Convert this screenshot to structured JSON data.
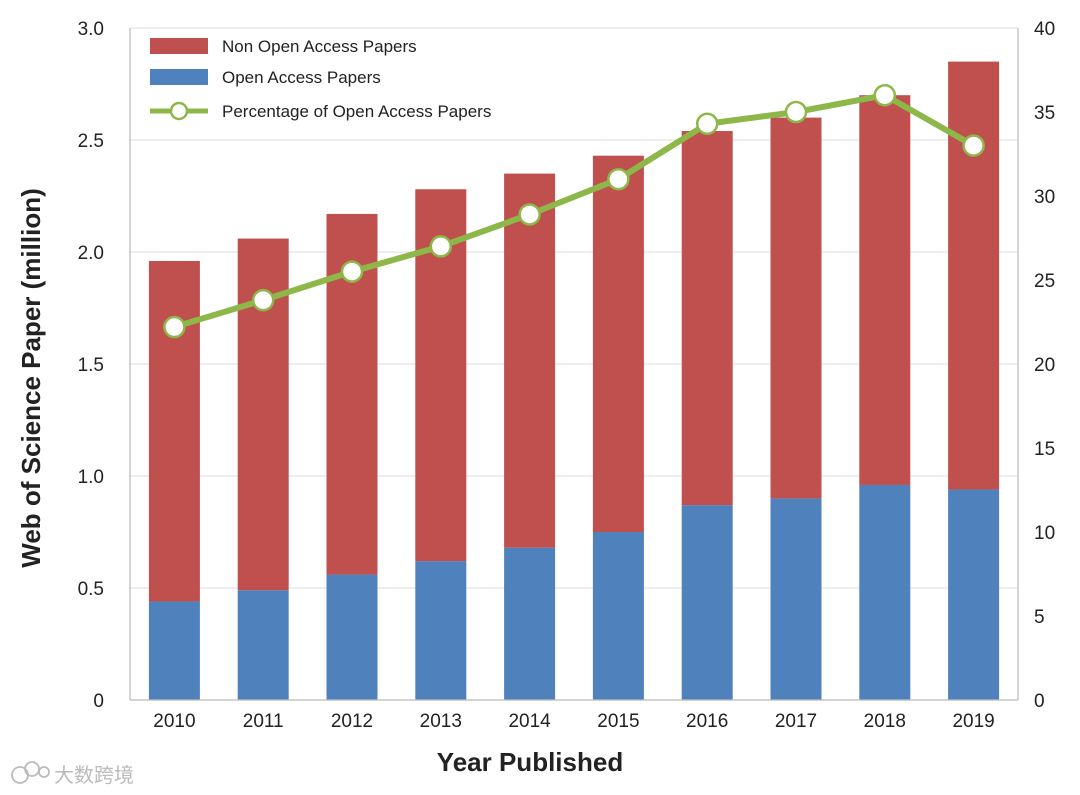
{
  "colors": {
    "non_open_access": "#c0504d",
    "open_access": "#4f81bd",
    "percentage_line": "#8db849",
    "grid": "#dddddd",
    "axis": "#bbbbbb"
  },
  "watermark": {
    "icon": "cloud-logo-icon",
    "text": "大数跨境"
  },
  "chart_data": {
    "type": "bar",
    "stacked": true,
    "categories": [
      "2010",
      "2011",
      "2012",
      "2013",
      "2014",
      "2015",
      "2016",
      "2017",
      "2018",
      "2019"
    ],
    "series": [
      {
        "name": "Non Open Access Papers",
        "kind": "bar",
        "values": [
          1.52,
          1.57,
          1.61,
          1.66,
          1.67,
          1.68,
          1.67,
          1.7,
          1.74,
          1.91
        ]
      },
      {
        "name": "Open Access Papers",
        "kind": "bar",
        "values": [
          0.44,
          0.49,
          0.56,
          0.62,
          0.68,
          0.75,
          0.87,
          0.9,
          0.96,
          0.94
        ]
      },
      {
        "name": "Percentage of Open Access Papers",
        "kind": "line",
        "axis": "right",
        "values": [
          22.2,
          23.8,
          25.5,
          27.0,
          28.9,
          31.0,
          34.3,
          35.0,
          36.0,
          33.0
        ]
      }
    ],
    "legend_order": [
      "Non Open Access Papers",
      "Open Access Papers",
      "Percentage of Open Access Papers"
    ],
    "title": "",
    "xlabel": "Year Published",
    "ylabel": "Web of Science Paper (million)",
    "ylim": [
      0,
      3.0
    ],
    "yticks": [
      "0",
      "0.5",
      "1.0",
      "1.5",
      "2.0",
      "2.5",
      "3.0"
    ],
    "y2lim": [
      0,
      40
    ],
    "y2ticks": [
      "0",
      "5",
      "10",
      "15",
      "20",
      "25",
      "30",
      "35",
      "40"
    ],
    "grid": true,
    "legend_position": "top-left"
  }
}
